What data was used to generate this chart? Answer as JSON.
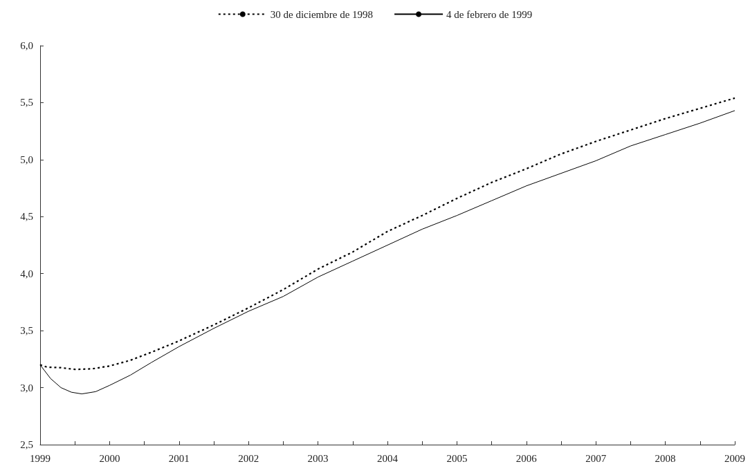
{
  "chart_data": {
    "type": "line",
    "legend": "top",
    "grid": false,
    "marker": "none",
    "xlim": [
      1999,
      2009
    ],
    "xticks": [
      1999,
      {
        "value": 1999.5,
        "label": null
      },
      2000,
      {
        "value": 2000.5,
        "label": null
      },
      2001,
      {
        "value": 2001.5,
        "label": null
      },
      2002,
      {
        "value": 2002.5,
        "label": null
      },
      2003,
      {
        "value": 2003.5,
        "label": null
      },
      2004,
      {
        "value": 2004.5,
        "label": null
      },
      2005,
      {
        "value": 2005.5,
        "label": null
      },
      2006,
      {
        "value": 2006.5,
        "label": null
      },
      2007,
      {
        "value": 2007.5,
        "label": null
      },
      2008,
      {
        "value": 2008.5,
        "label": null
      },
      2009
    ],
    "ylim": [
      2.5,
      6.0
    ],
    "yticks": [
      {
        "value": 2.5,
        "label": "2,5"
      },
      {
        "value": 3.0,
        "label": "3,0"
      },
      {
        "value": 3.5,
        "label": "3,5"
      },
      {
        "value": 4.0,
        "label": "4,0"
      },
      {
        "value": 4.5,
        "label": "4,5"
      },
      {
        "value": 5.0,
        "label": "5,0"
      },
      {
        "value": 5.5,
        "label": "5,5"
      },
      {
        "value": 6.0,
        "label": "6,0"
      }
    ],
    "series": [
      {
        "name": "30 de diciembre de 1998",
        "color": "#000000",
        "line_style": "dotted",
        "x": [
          1999,
          1999.1,
          1999.3,
          1999.5,
          1999.75,
          2000,
          2000.3,
          2000.6,
          2001,
          2001.5,
          2002,
          2002.5,
          2003,
          2003.5,
          2004,
          2004.5,
          2005,
          2005.5,
          2006,
          2006.5,
          2007,
          2007.5,
          2008,
          2008.5,
          2009
        ],
        "values": [
          3.2,
          3.18,
          3.175,
          3.16,
          3.165,
          3.19,
          3.24,
          3.31,
          3.41,
          3.55,
          3.7,
          3.86,
          4.04,
          4.19,
          4.37,
          4.51,
          4.66,
          4.8,
          4.92,
          5.05,
          5.16,
          5.26,
          5.36,
          5.45,
          5.54
        ]
      },
      {
        "name": "4 de febrero de 1999",
        "color": "#000000",
        "line_style": "solid",
        "x": [
          1999,
          1999.15,
          1999.3,
          1999.45,
          1999.6,
          1999.8,
          2000,
          2000.3,
          2000.6,
          2001,
          2001.5,
          2002,
          2002.5,
          2003,
          2003.5,
          2004,
          2004.5,
          2005,
          2005.5,
          2006,
          2006.5,
          2007,
          2007.5,
          2008,
          2008.5,
          2009
        ],
        "values": [
          3.2,
          3.08,
          3.0,
          2.96,
          2.945,
          2.965,
          3.02,
          3.11,
          3.22,
          3.36,
          3.52,
          3.67,
          3.8,
          3.97,
          4.11,
          4.25,
          4.39,
          4.51,
          4.64,
          4.77,
          4.88,
          4.99,
          5.12,
          5.22,
          5.32,
          5.43
        ]
      }
    ]
  }
}
